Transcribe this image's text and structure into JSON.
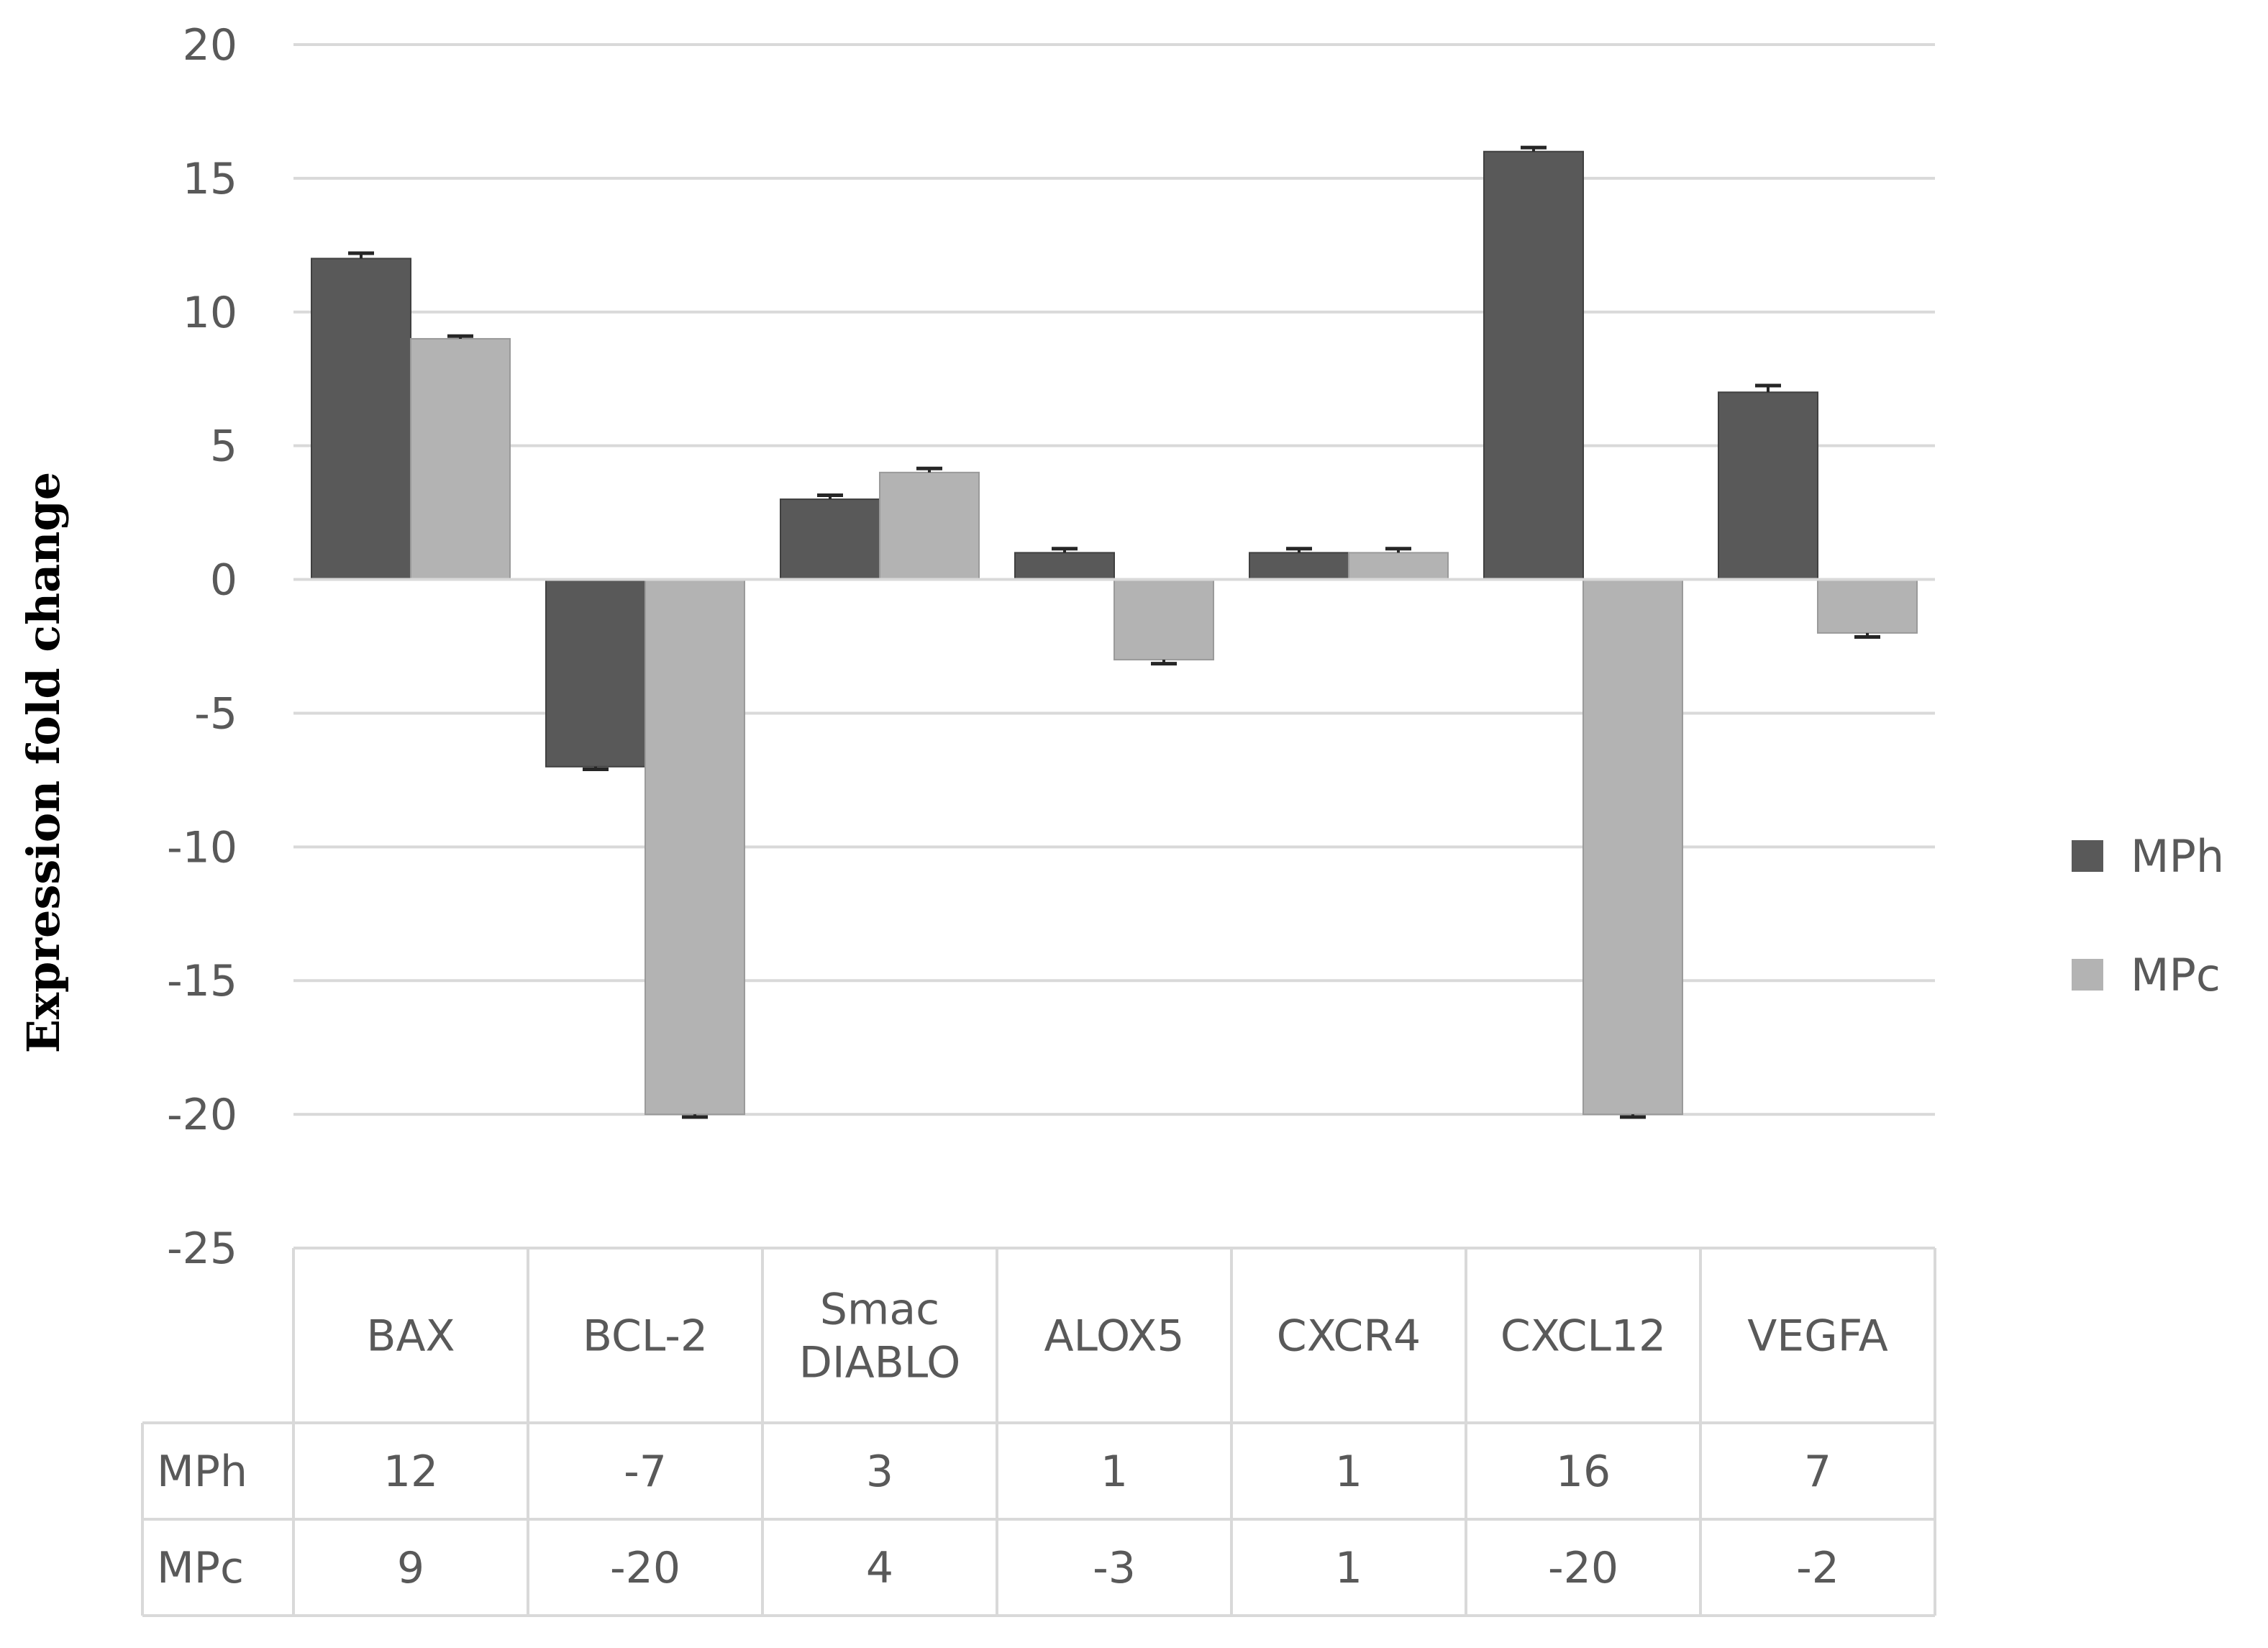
{
  "chart_data": {
    "type": "bar",
    "title": "",
    "xlabel": "",
    "ylabel": "Expression fold change",
    "ylim": [
      -25,
      20
    ],
    "yticks": [
      20,
      15,
      10,
      5,
      0,
      -5,
      -10,
      -15,
      -20,
      -25
    ],
    "grid": true,
    "legend_position": "right",
    "categories": [
      {
        "lines": [
          "BAX"
        ]
      },
      {
        "lines": [
          "BCL-2"
        ]
      },
      {
        "lines": [
          "Smac",
          "DIABLO"
        ]
      },
      {
        "lines": [
          "ALOX5"
        ]
      },
      {
        "lines": [
          "CXCR4"
        ]
      },
      {
        "lines": [
          "CXCL12"
        ]
      },
      {
        "lines": [
          "VEGFA"
        ]
      }
    ],
    "series": [
      {
        "name": "MPh",
        "color": "#595959",
        "values": [
          12,
          -7,
          3,
          1,
          1,
          16,
          7
        ],
        "errors": [
          0.2,
          0.1,
          0.15,
          0.15,
          0.15,
          0.15,
          0.25
        ]
      },
      {
        "name": "MPc",
        "color": "#b3b3b3",
        "values": [
          9,
          -20,
          4,
          -3,
          1,
          -20,
          -2
        ],
        "errors": [
          0.1,
          0.1,
          0.15,
          0.15,
          0.15,
          0.1,
          0.15
        ]
      }
    ]
  }
}
